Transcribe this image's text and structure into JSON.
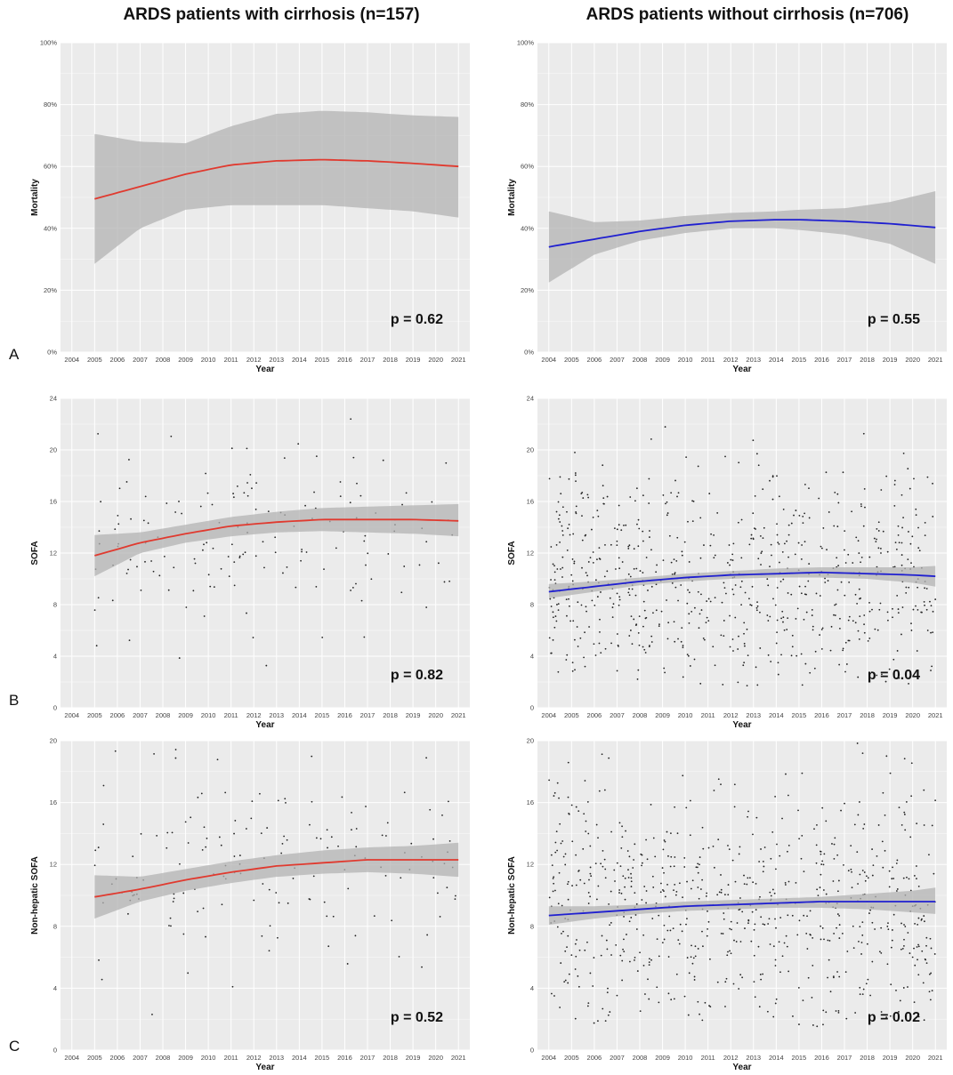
{
  "columns": [
    {
      "title": "ARDS patients with cirrhosis (n=157)"
    },
    {
      "title": "ARDS patients without cirrhosis (n=706)"
    }
  ],
  "rows": [
    {
      "letter": "A"
    },
    {
      "letter": "B"
    },
    {
      "letter": "C"
    }
  ],
  "colors": {
    "cirrhosis_line": "#e03a2f",
    "no_cirrhosis_line": "#1f1fd0",
    "band": "#b3b3b3",
    "panel_bg": "#ebebeb",
    "grid": "#ffffff",
    "points": "#222222"
  },
  "chart_data": [
    {
      "type": "line",
      "panel": "A-left",
      "xlabel": "Year",
      "ylabel": "Mortality",
      "x_ticks": [
        "2004",
        "2005",
        "2006",
        "2007",
        "2008",
        "2009",
        "2010",
        "2011",
        "2012",
        "2013",
        "2014",
        "2015",
        "2016",
        "2017",
        "2018",
        "2019",
        "2020",
        "2021"
      ],
      "y_ticks": [
        "0%",
        "20%",
        "40%",
        "60%",
        "80%",
        "100%"
      ],
      "xlim": [
        2004,
        2021
      ],
      "ylim": [
        0,
        100
      ],
      "fit_x": [
        2005,
        2007,
        2009,
        2011,
        2013,
        2015,
        2017,
        2019,
        2021
      ],
      "fit_y": [
        49.5,
        53.5,
        57.5,
        60.5,
        61.8,
        62.2,
        61.8,
        61.0,
        60.0
      ],
      "band_lower": [
        28.5,
        40,
        46,
        47.5,
        47.5,
        47.5,
        46.5,
        45.5,
        43.5
      ],
      "band_upper": [
        70.5,
        68,
        67.5,
        73,
        77,
        78,
        77.5,
        76.5,
        76
      ],
      "annotation": "p = 0.62",
      "points": 0
    },
    {
      "type": "line",
      "panel": "A-right",
      "xlabel": "Year",
      "ylabel": "Mortality",
      "x_ticks": [
        "2004",
        "2005",
        "2006",
        "2007",
        "2008",
        "2009",
        "2010",
        "2011",
        "2012",
        "2013",
        "2014",
        "2015",
        "2016",
        "2017",
        "2018",
        "2019",
        "2020",
        "2021"
      ],
      "y_ticks": [
        "0%",
        "20%",
        "40%",
        "60%",
        "80%",
        "100%"
      ],
      "xlim": [
        2004,
        2021
      ],
      "ylim": [
        0,
        100
      ],
      "fit_x": [
        2004,
        2006,
        2008,
        2010,
        2012,
        2014,
        2015,
        2017,
        2019,
        2021
      ],
      "fit_y": [
        34,
        36.5,
        39,
        41,
        42.3,
        42.8,
        42.8,
        42.3,
        41.5,
        40.3
      ],
      "band_lower": [
        22.5,
        31.5,
        36,
        38.5,
        40,
        40,
        39.5,
        38,
        35,
        28.5
      ],
      "band_upper": [
        45.5,
        42,
        42.5,
        44,
        45,
        45.5,
        46,
        46.5,
        48.5,
        52
      ],
      "annotation": "p = 0.55",
      "points": 0
    },
    {
      "type": "scatter",
      "panel": "B-left",
      "xlabel": "Year",
      "ylabel": "SOFA",
      "x_ticks": [
        "2004",
        "2005",
        "2006",
        "2007",
        "2008",
        "2009",
        "2010",
        "2011",
        "2012",
        "2013",
        "2014",
        "2015",
        "2016",
        "2017",
        "2018",
        "2019",
        "2020",
        "2021"
      ],
      "y_ticks": [
        "0",
        "4",
        "8",
        "12",
        "16",
        "20",
        "24"
      ],
      "xlim": [
        2004,
        2021
      ],
      "ylim": [
        0,
        24
      ],
      "fit_x": [
        2005,
        2007,
        2009,
        2011,
        2013,
        2015,
        2017,
        2019,
        2021
      ],
      "fit_y": [
        11.8,
        12.8,
        13.5,
        14.1,
        14.4,
        14.6,
        14.6,
        14.6,
        14.5
      ],
      "band_lower": [
        10.2,
        12.0,
        12.8,
        13.3,
        13.6,
        13.7,
        13.6,
        13.5,
        13.3
      ],
      "band_upper": [
        13.4,
        13.6,
        14.2,
        14.8,
        15.2,
        15.5,
        15.6,
        15.7,
        15.8
      ],
      "annotation": "p = 0.82",
      "points": 157,
      "seed": 11,
      "scatter_mean": 13.5,
      "scatter_sd": 3.6
    },
    {
      "type": "scatter",
      "panel": "B-right",
      "xlabel": "Year",
      "ylabel": "SOFA",
      "x_ticks": [
        "2004",
        "2005",
        "2006",
        "2007",
        "2008",
        "2009",
        "2010",
        "2011",
        "2012",
        "2013",
        "2014",
        "2015",
        "2016",
        "2017",
        "2018",
        "2019",
        "2020",
        "2021"
      ],
      "y_ticks": [
        "0",
        "4",
        "8",
        "12",
        "16",
        "20",
        "24"
      ],
      "xlim": [
        2004,
        2021
      ],
      "ylim": [
        0,
        24
      ],
      "fit_x": [
        2004,
        2006,
        2008,
        2010,
        2012,
        2014,
        2016,
        2018,
        2020,
        2021
      ],
      "fit_y": [
        9.0,
        9.4,
        9.8,
        10.1,
        10.3,
        10.4,
        10.5,
        10.4,
        10.3,
        10.2
      ],
      "band_lower": [
        8.5,
        9.0,
        9.5,
        9.8,
        10.0,
        10.1,
        10.1,
        10.0,
        9.7,
        9.4
      ],
      "band_upper": [
        9.6,
        9.8,
        10.1,
        10.4,
        10.6,
        10.8,
        10.9,
        10.9,
        10.9,
        11.0
      ],
      "annotation": "p = 0.04",
      "points": 706,
      "seed": 23,
      "scatter_mean": 10.0,
      "scatter_sd": 4.2
    },
    {
      "type": "scatter",
      "panel": "C-left",
      "xlabel": "Year",
      "ylabel": "Non-hepatic SOFA",
      "x_ticks": [
        "2004",
        "2005",
        "2006",
        "2007",
        "2008",
        "2009",
        "2010",
        "2011",
        "2012",
        "2013",
        "2014",
        "2015",
        "2016",
        "2017",
        "2018",
        "2019",
        "2020",
        "2021"
      ],
      "y_ticks": [
        "0",
        "4",
        "8",
        "12",
        "16",
        "20"
      ],
      "xlim": [
        2004,
        2021
      ],
      "ylim": [
        0,
        20
      ],
      "fit_x": [
        2005,
        2007,
        2009,
        2011,
        2013,
        2015,
        2017,
        2019,
        2021
      ],
      "fit_y": [
        9.9,
        10.4,
        11.0,
        11.5,
        11.9,
        12.1,
        12.3,
        12.3,
        12.3
      ],
      "band_lower": [
        8.5,
        9.6,
        10.3,
        10.8,
        11.2,
        11.4,
        11.5,
        11.4,
        11.2
      ],
      "band_upper": [
        11.3,
        11.2,
        11.7,
        12.2,
        12.6,
        12.9,
        13.1,
        13.2,
        13.4
      ],
      "annotation": "p = 0.52",
      "points": 157,
      "seed": 37,
      "scatter_mean": 11.5,
      "scatter_sd": 3.5
    },
    {
      "type": "scatter",
      "panel": "C-right",
      "xlabel": "Year",
      "ylabel": "Non-hepatic SOFA",
      "x_ticks": [
        "2004",
        "2005",
        "2006",
        "2007",
        "2008",
        "2009",
        "2010",
        "2011",
        "2012",
        "2013",
        "2014",
        "2015",
        "2016",
        "2017",
        "2018",
        "2019",
        "2020",
        "2021"
      ],
      "y_ticks": [
        "0",
        "4",
        "8",
        "12",
        "16",
        "20"
      ],
      "xlim": [
        2004,
        2021
      ],
      "ylim": [
        0,
        20
      ],
      "fit_x": [
        2004,
        2006,
        2008,
        2010,
        2012,
        2014,
        2016,
        2018,
        2020,
        2021
      ],
      "fit_y": [
        8.7,
        8.9,
        9.1,
        9.3,
        9.4,
        9.5,
        9.6,
        9.6,
        9.6,
        9.6
      ],
      "band_lower": [
        8.1,
        8.5,
        8.8,
        9.0,
        9.1,
        9.2,
        9.2,
        9.1,
        8.9,
        8.8
      ],
      "band_upper": [
        9.3,
        9.3,
        9.4,
        9.6,
        9.7,
        9.8,
        9.9,
        10.1,
        10.3,
        10.5
      ],
      "annotation": "p = 0.02",
      "points": 706,
      "seed": 51,
      "scatter_mean": 9.3,
      "scatter_sd": 4.0
    }
  ]
}
